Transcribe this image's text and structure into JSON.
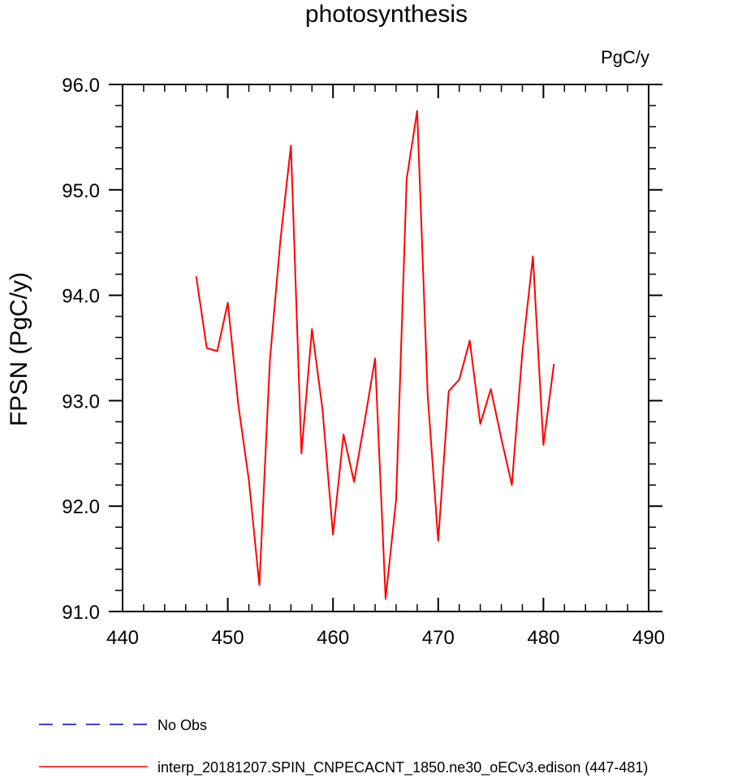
{
  "chart_data": {
    "type": "line",
    "title": "photosynthesis",
    "units": "PgC/y",
    "xlabel": "",
    "ylabel": "FPSN  (PgC/y)",
    "xlim": [
      440,
      490
    ],
    "ylim": [
      91.0,
      96.0
    ],
    "x_ticks": [
      "440",
      "450",
      "460",
      "470",
      "480",
      "490"
    ],
    "y_ticks": [
      "91.0",
      "92.0",
      "93.0",
      "94.0",
      "95.0",
      "96.0"
    ],
    "grid": false,
    "series": [
      {
        "name": "interp_20181207.SPIN_CNPECACNT_1850.ne30_oECv3.edison (447-481)",
        "color": "#ff0000",
        "x": [
          447,
          448,
          449,
          450,
          451,
          452,
          453,
          454,
          455,
          456,
          457,
          458,
          459,
          460,
          461,
          462,
          463,
          464,
          465,
          466,
          467,
          468,
          469,
          470,
          471,
          472,
          473,
          474,
          475,
          476,
          477,
          478,
          479,
          480,
          481
        ],
        "y": [
          94.18,
          93.5,
          93.47,
          93.93,
          92.96,
          92.25,
          91.25,
          93.38,
          94.52,
          95.42,
          92.5,
          93.68,
          92.92,
          91.73,
          92.68,
          92.23,
          92.8,
          93.4,
          91.12,
          92.06,
          95.1,
          95.75,
          93.05,
          91.67,
          93.09,
          93.2,
          93.57,
          92.78,
          93.11,
          92.64,
          92.2,
          93.46,
          94.37,
          92.58,
          93.35
        ]
      }
    ],
    "legend": {
      "placement": "bottom-left",
      "entries": [
        {
          "label": "No Obs",
          "color": "#0000cc",
          "style": "dashed"
        },
        {
          "label": "interp_20181207.SPIN_CNPECACNT_1850.ne30_oECv3.edison (447-481)",
          "color": "#ff0000",
          "style": "solid"
        }
      ]
    }
  }
}
